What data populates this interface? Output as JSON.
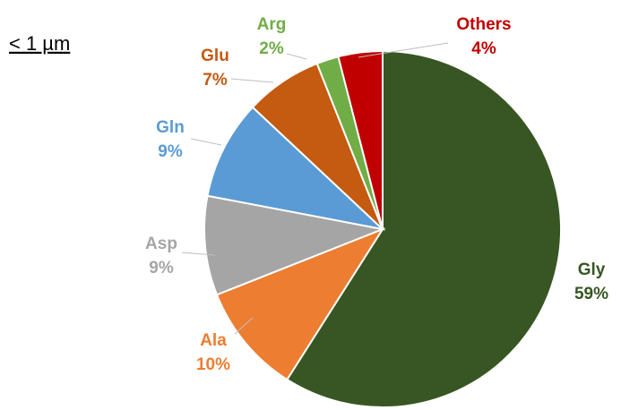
{
  "chart_data": {
    "type": "pie",
    "title": "< 1 µm",
    "categories": [
      "Gly",
      "Ala",
      "Asp",
      "Gln",
      "Glu",
      "Arg",
      "Others"
    ],
    "values": [
      59,
      10,
      9,
      9,
      7,
      2,
      4
    ],
    "value_labels": [
      "59%",
      "10%",
      "9%",
      "9%",
      "7%",
      "2%",
      "4%"
    ],
    "colors": [
      "#375623",
      "#ed7d31",
      "#a5a5a5",
      "#5b9bd5",
      "#c55a11",
      "#70ad47",
      "#c00000"
    ]
  }
}
